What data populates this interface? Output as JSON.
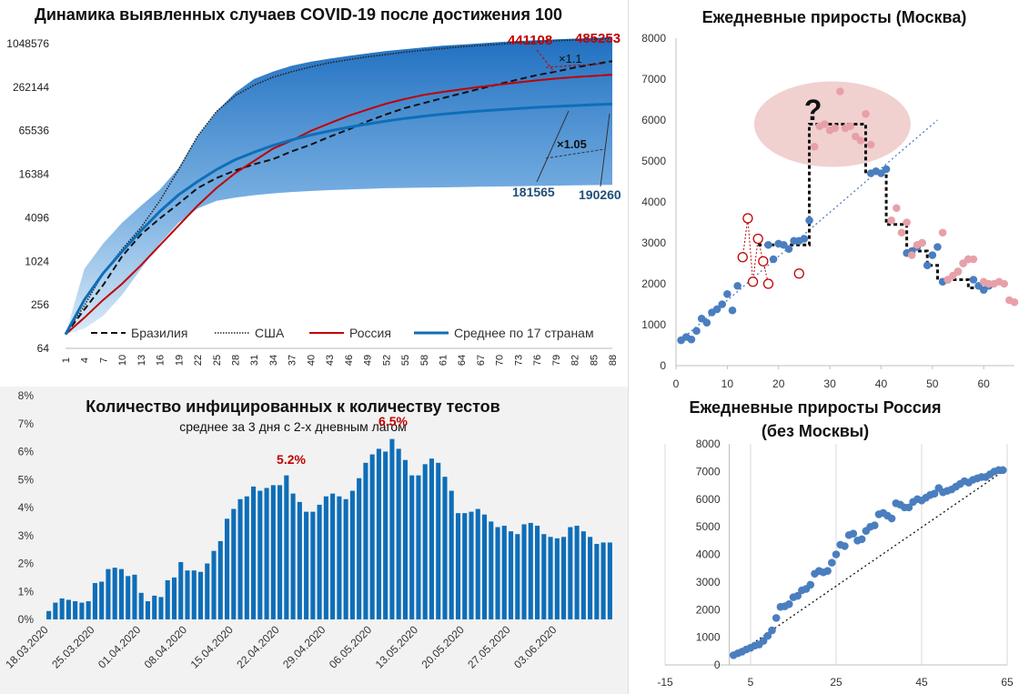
{
  "chart_data": [
    {
      "type": "line",
      "title": "Динамика выявленных случаев COVID-19 после достижения 100",
      "yscale": "log2",
      "ylim": [
        64,
        1048576
      ],
      "y_ticks": [
        "64",
        "256",
        "1024",
        "4096",
        "16384",
        "65536",
        "262144",
        "1048576"
      ],
      "x_ticks": [
        "1",
        "4",
        "7",
        "10",
        "13",
        "16",
        "19",
        "22",
        "25",
        "28",
        "31",
        "34",
        "37",
        "40",
        "43",
        "46",
        "49",
        "52",
        "55",
        "58",
        "61",
        "64",
        "67",
        "70",
        "73",
        "76",
        "79",
        "82",
        "85",
        "88"
      ],
      "xlim": [
        1,
        88
      ],
      "series": [
        {
          "name": "Бразилия",
          "color": "#111111",
          "style": "dashed",
          "x": [
            1,
            4,
            7,
            10,
            13,
            16,
            19,
            22,
            25,
            28,
            31,
            34,
            37,
            40,
            43,
            46,
            49,
            52,
            55,
            58,
            61,
            64,
            67,
            70,
            73,
            76,
            79,
            82,
            85,
            88
          ],
          "y": [
            100,
            220,
            480,
            1200,
            2400,
            4000,
            6400,
            10500,
            14500,
            18500,
            22500,
            26500,
            34000,
            42000,
            54000,
            68000,
            88000,
            110000,
            135000,
            158000,
            185000,
            215000,
            250000,
            290000,
            335000,
            385000,
            430000,
            490000,
            545000,
            600000
          ]
        },
        {
          "name": "США",
          "color": "#222222",
          "style": "dotted",
          "x": [
            1,
            4,
            7,
            10,
            13,
            16,
            19,
            22,
            25,
            28,
            31,
            34,
            37,
            40,
            43,
            46,
            49,
            52,
            55,
            58,
            61,
            64,
            67,
            70,
            73,
            76,
            79,
            82,
            85,
            88
          ],
          "y": [
            100,
            250,
            700,
            1500,
            3000,
            7000,
            19000,
            55000,
            120000,
            200000,
            280000,
            360000,
            430000,
            500000,
            570000,
            630000,
            690000,
            740000,
            800000,
            850000,
            900000,
            950000,
            990000,
            1030000,
            1070000,
            1110000,
            1150000,
            1180000,
            1200000,
            1230000
          ]
        },
        {
          "name": "Россия",
          "color": "#c00000",
          "style": "solid",
          "x": [
            1,
            4,
            7,
            10,
            13,
            16,
            19,
            22,
            25,
            28,
            31,
            34,
            37,
            40,
            43,
            46,
            49,
            52,
            55,
            58,
            61,
            64,
            67,
            70,
            73,
            76,
            79,
            82,
            85,
            88
          ],
          "y": [
            100,
            170,
            300,
            500,
            900,
            1700,
            3200,
            6000,
            10500,
            17000,
            25000,
            37000,
            48000,
            65000,
            83000,
            105000,
            128000,
            155000,
            180000,
            205000,
            225000,
            245000,
            265000,
            285000,
            305000,
            325000,
            345000,
            362000,
            375000,
            390000
          ]
        },
        {
          "name": "Среднее по 17 странам",
          "color": "#0e6eb8",
          "style": "solid",
          "x": [
            1,
            4,
            7,
            10,
            13,
            16,
            19,
            22,
            25,
            28,
            31,
            34,
            37,
            40,
            43,
            46,
            49,
            52,
            55,
            58,
            61,
            64,
            67,
            70,
            73,
            76,
            79,
            82,
            85,
            88
          ],
          "y": [
            100,
            300,
            700,
            1400,
            2700,
            5000,
            8500,
            13000,
            19000,
            26000,
            33000,
            41000,
            49000,
            57000,
            65000,
            73000,
            81000,
            89000,
            97000,
            104000,
            111000,
            117000,
            123000,
            128000,
            133000,
            138000,
            142000,
            146000,
            150000,
            153000
          ]
        }
      ],
      "band": {
        "name": "range",
        "color": "#1f6fc0",
        "x": [
          1,
          4,
          7,
          10,
          13,
          16,
          19,
          22,
          25,
          28,
          31,
          34,
          37,
          40,
          43,
          46,
          49,
          52,
          55,
          58,
          61,
          64,
          67,
          70,
          73,
          76,
          79,
          82,
          85,
          88
        ],
        "upper": [
          100,
          800,
          1800,
          3500,
          6000,
          10000,
          20000,
          55000,
          120000,
          220000,
          340000,
          430000,
          520000,
          590000,
          650000,
          710000,
          770000,
          830000,
          880000,
          930000,
          980000,
          1020000,
          1060000,
          1100000,
          1140000,
          1170000,
          1200000,
          1230000,
          1260000,
          1290000
        ],
        "lower": [
          100,
          120,
          180,
          350,
          800,
          1800,
          3500,
          5500,
          7000,
          7800,
          8400,
          8900,
          9300,
          9600,
          9900,
          10100,
          10300,
          10500,
          10600,
          10700,
          10800,
          10900,
          11000,
          11100,
          11200,
          11300,
          11400,
          11500,
          11600,
          11700
        ]
      },
      "annotations": [
        "441108",
        "485253",
        "×1.1",
        "×1.05",
        "181565",
        "190260"
      ],
      "legend_position": "bottom"
    },
    {
      "type": "scatter",
      "title": "Ежедневные приросты (Москва)",
      "xlim": [
        0,
        66
      ],
      "ylim": [
        0,
        8000
      ],
      "x_ticks": [
        "0",
        "10",
        "20",
        "30",
        "40",
        "50",
        "60"
      ],
      "y_ticks": [
        "0",
        "1000",
        "2000",
        "3000",
        "4000",
        "5000",
        "6000",
        "7000",
        "8000"
      ],
      "series": [
        {
          "name": "blue",
          "color": "#4a7ebf",
          "x": [
            1,
            2,
            3,
            4,
            5,
            6,
            7,
            8,
            9,
            10,
            11,
            12,
            18,
            19,
            20,
            21,
            22,
            23,
            24,
            25,
            26,
            38,
            39,
            40,
            41,
            45,
            46,
            47,
            48,
            49,
            50,
            51,
            52,
            53,
            55,
            56,
            57,
            58,
            59,
            60,
            61
          ],
          "y": [
            620,
            700,
            640,
            850,
            1150,
            1050,
            1300,
            1380,
            1500,
            1750,
            1350,
            1950,
            2950,
            2600,
            2980,
            2950,
            2850,
            3050,
            3050,
            3100,
            3550,
            4700,
            4750,
            4700,
            4800,
            2750,
            2800,
            2900,
            3000,
            2450,
            2700,
            2900,
            2050,
            2100,
            2300,
            2500,
            2600,
            2100,
            1950,
            1850,
            1950
          ]
        },
        {
          "name": "pink",
          "color": "#e8a0a8",
          "x": [
            27,
            28,
            29,
            30,
            31,
            32,
            33,
            34,
            35,
            36,
            37,
            38,
            42,
            43,
            44,
            45,
            46,
            47,
            48,
            52,
            53,
            54,
            55,
            56,
            57,
            58,
            60,
            61,
            62,
            63,
            64,
            65,
            66
          ],
          "y": [
            5350,
            5850,
            5900,
            5750,
            5800,
            6700,
            5800,
            5850,
            5600,
            5500,
            6150,
            5400,
            3550,
            3850,
            3250,
            3500,
            2700,
            2950,
            3000,
            3250,
            2100,
            2200,
            2300,
            2500,
            2600,
            2600,
            2050,
            2000,
            2000,
            2050,
            2000,
            1600,
            1550
          ]
        },
        {
          "name": "open",
          "color": "#c00000",
          "x": [
            13,
            14,
            15,
            16,
            17,
            18,
            24
          ],
          "y": [
            2650,
            3600,
            2050,
            3100,
            2550,
            2000,
            2250
          ]
        }
      ],
      "trendline": {
        "x": [
          1,
          51
        ],
        "y": [
          630,
          6000
        ]
      },
      "steps": {
        "x": [
          16,
          26,
          26,
          37,
          37,
          41,
          41,
          45,
          45,
          49,
          49,
          51,
          51,
          57,
          57,
          61
        ],
        "y": [
          2950,
          2950,
          5900,
          5900,
          4700,
          4700,
          3450,
          3450,
          2800,
          2800,
          2450,
          2450,
          2100,
          2100,
          1900,
          1900
        ]
      },
      "highlight_label": "?"
    },
    {
      "type": "bar",
      "title": "Количество инфицированных к количеству тестов",
      "subtitle": "среднее за 3 дня с 2-х дневным лагом",
      "ylim": [
        0,
        8
      ],
      "y_ticks": [
        "0%",
        "1%",
        "2%",
        "3%",
        "4%",
        "5%",
        "6%",
        "7%",
        "8%"
      ],
      "x_labels": [
        "18.03.2020",
        "25.03.2020",
        "01.04.2020",
        "08.04.2020",
        "15.04.2020",
        "22.04.2020",
        "29.04.2020",
        "06.05.2020",
        "13.05.2020",
        "20.05.2020",
        "27.05.2020",
        "03.06.2020"
      ],
      "values": [
        0.3,
        0.6,
        0.75,
        0.7,
        0.65,
        0.6,
        0.65,
        1.3,
        1.35,
        1.8,
        1.85,
        1.8,
        1.55,
        1.6,
        0.95,
        0.65,
        0.85,
        0.8,
        1.4,
        1.5,
        2.05,
        1.75,
        1.75,
        1.7,
        2.0,
        2.45,
        2.8,
        3.6,
        3.95,
        4.3,
        4.4,
        4.75,
        4.6,
        4.7,
        4.8,
        4.8,
        5.15,
        4.5,
        4.2,
        3.85,
        3.85,
        4.1,
        4.4,
        4.5,
        4.4,
        4.3,
        4.6,
        5.05,
        5.6,
        5.9,
        6.1,
        6.0,
        6.45,
        6.1,
        5.7,
        5.15,
        5.15,
        5.55,
        5.75,
        5.6,
        5.1,
        4.6,
        3.8,
        3.8,
        3.85,
        3.95,
        3.75,
        3.5,
        3.3,
        3.35,
        3.15,
        3.05,
        3.4,
        3.45,
        3.35,
        3.05,
        2.95,
        2.9,
        2.95,
        3.3,
        3.35,
        3.15,
        2.95,
        2.7,
        2.75,
        2.75
      ],
      "annotations": [
        "5.2%",
        "6.5%"
      ],
      "color": "#0e6eb8"
    },
    {
      "type": "scatter",
      "title": "Ежедневные приросты Россия (без Москвы)",
      "xlim": [
        -15,
        65
      ],
      "ylim": [
        0,
        8000
      ],
      "x_ticks": [
        "-15",
        "5",
        "25",
        "45",
        "65"
      ],
      "y_ticks": [
        "0",
        "1000",
        "2000",
        "3000",
        "4000",
        "5000",
        "6000",
        "7000",
        "8000"
      ],
      "color": "#4a7ebf",
      "x": [
        1,
        2,
        3,
        4,
        5,
        6,
        7,
        8,
        9,
        10,
        11,
        12,
        13,
        14,
        15,
        16,
        17,
        18,
        19,
        20,
        21,
        22,
        23,
        24,
        25,
        26,
        27,
        28,
        29,
        30,
        31,
        32,
        33,
        34,
        35,
        36,
        37,
        38,
        39,
        40,
        41,
        42,
        43,
        44,
        45,
        46,
        47,
        48,
        49,
        50,
        51,
        52,
        53,
        54,
        55,
        56,
        57,
        58,
        59,
        60,
        61,
        62,
        63,
        64
      ],
      "y": [
        350,
        420,
        480,
        560,
        620,
        700,
        740,
        870,
        1050,
        1250,
        1700,
        2100,
        2120,
        2200,
        2450,
        2500,
        2700,
        2750,
        2900,
        3300,
        3400,
        3350,
        3400,
        3700,
        4000,
        4350,
        4300,
        4700,
        4750,
        4500,
        4550,
        4850,
        5000,
        5050,
        5450,
        5500,
        5400,
        5300,
        5850,
        5800,
        5700,
        5700,
        5900,
        6000,
        5950,
        6050,
        6150,
        6200,
        6400,
        6250,
        6300,
        6350,
        6450,
        6550,
        6650,
        6600,
        6700,
        6750,
        6800,
        6800,
        6900,
        7000,
        7050,
        7050
      ],
      "trendline": {
        "x": [
          1,
          64
        ],
        "y": [
          300,
          7000
        ]
      }
    }
  ]
}
